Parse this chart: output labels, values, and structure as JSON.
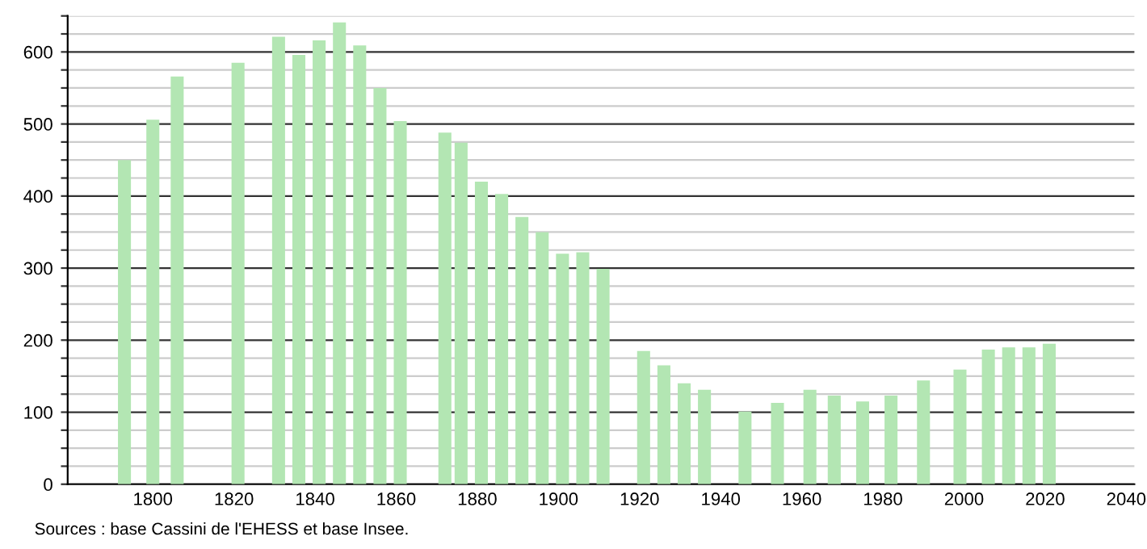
{
  "chart_data": {
    "type": "bar",
    "x": [
      1793,
      1800,
      1806,
      1821,
      1831,
      1836,
      1841,
      1846,
      1851,
      1856,
      1861,
      1872,
      1876,
      1881,
      1886,
      1891,
      1896,
      1901,
      1906,
      1911,
      1921,
      1926,
      1931,
      1936,
      1946,
      1954,
      1962,
      1968,
      1975,
      1982,
      1990,
      1999,
      2006,
      2011,
      2016,
      2021
    ],
    "values": [
      450,
      506,
      566,
      585,
      621,
      596,
      616,
      641,
      609,
      550,
      504,
      488,
      474,
      420,
      403,
      371,
      350,
      320,
      322,
      299,
      185,
      165,
      140,
      131,
      101,
      113,
      131,
      123,
      115,
      123,
      144,
      159,
      187,
      190,
      190,
      195
    ],
    "color": "#b3e6b3",
    "xlim": [
      1779,
      2042
    ],
    "xticks": [
      1800,
      1820,
      1840,
      1860,
      1880,
      1900,
      1920,
      1940,
      1960,
      1980,
      2000,
      2020,
      2040
    ],
    "ylim": [
      0,
      650
    ],
    "yticks": [
      0,
      {
        "value": 25,
        "label": null
      },
      100,
      {
        "value": 50,
        "label": null
      },
      {
        "value": 75,
        "label": null
      },
      {
        "value": 125,
        "label": null
      },
      {
        "value": 150,
        "label": null
      },
      {
        "value": 175,
        "label": null
      },
      200,
      {
        "value": 225,
        "label": null
      },
      {
        "value": 250,
        "label": null
      },
      {
        "value": 275,
        "label": null
      },
      300,
      {
        "value": 325,
        "label": null
      },
      {
        "value": 350,
        "label": null
      },
      {
        "value": 375,
        "label": null
      },
      400,
      {
        "value": 425,
        "label": null
      },
      {
        "value": 450,
        "label": null
      },
      {
        "value": 475,
        "label": null
      },
      500,
      {
        "value": 525,
        "label": null
      },
      {
        "value": 550,
        "label": null
      },
      {
        "value": 575,
        "label": null
      },
      600,
      {
        "value": 625,
        "label": null
      },
      {
        "value": 650,
        "label": null
      }
    ],
    "grid": "y",
    "annotations": [
      "Sources : base Cassini de l'EHESS et base Insee."
    ]
  }
}
